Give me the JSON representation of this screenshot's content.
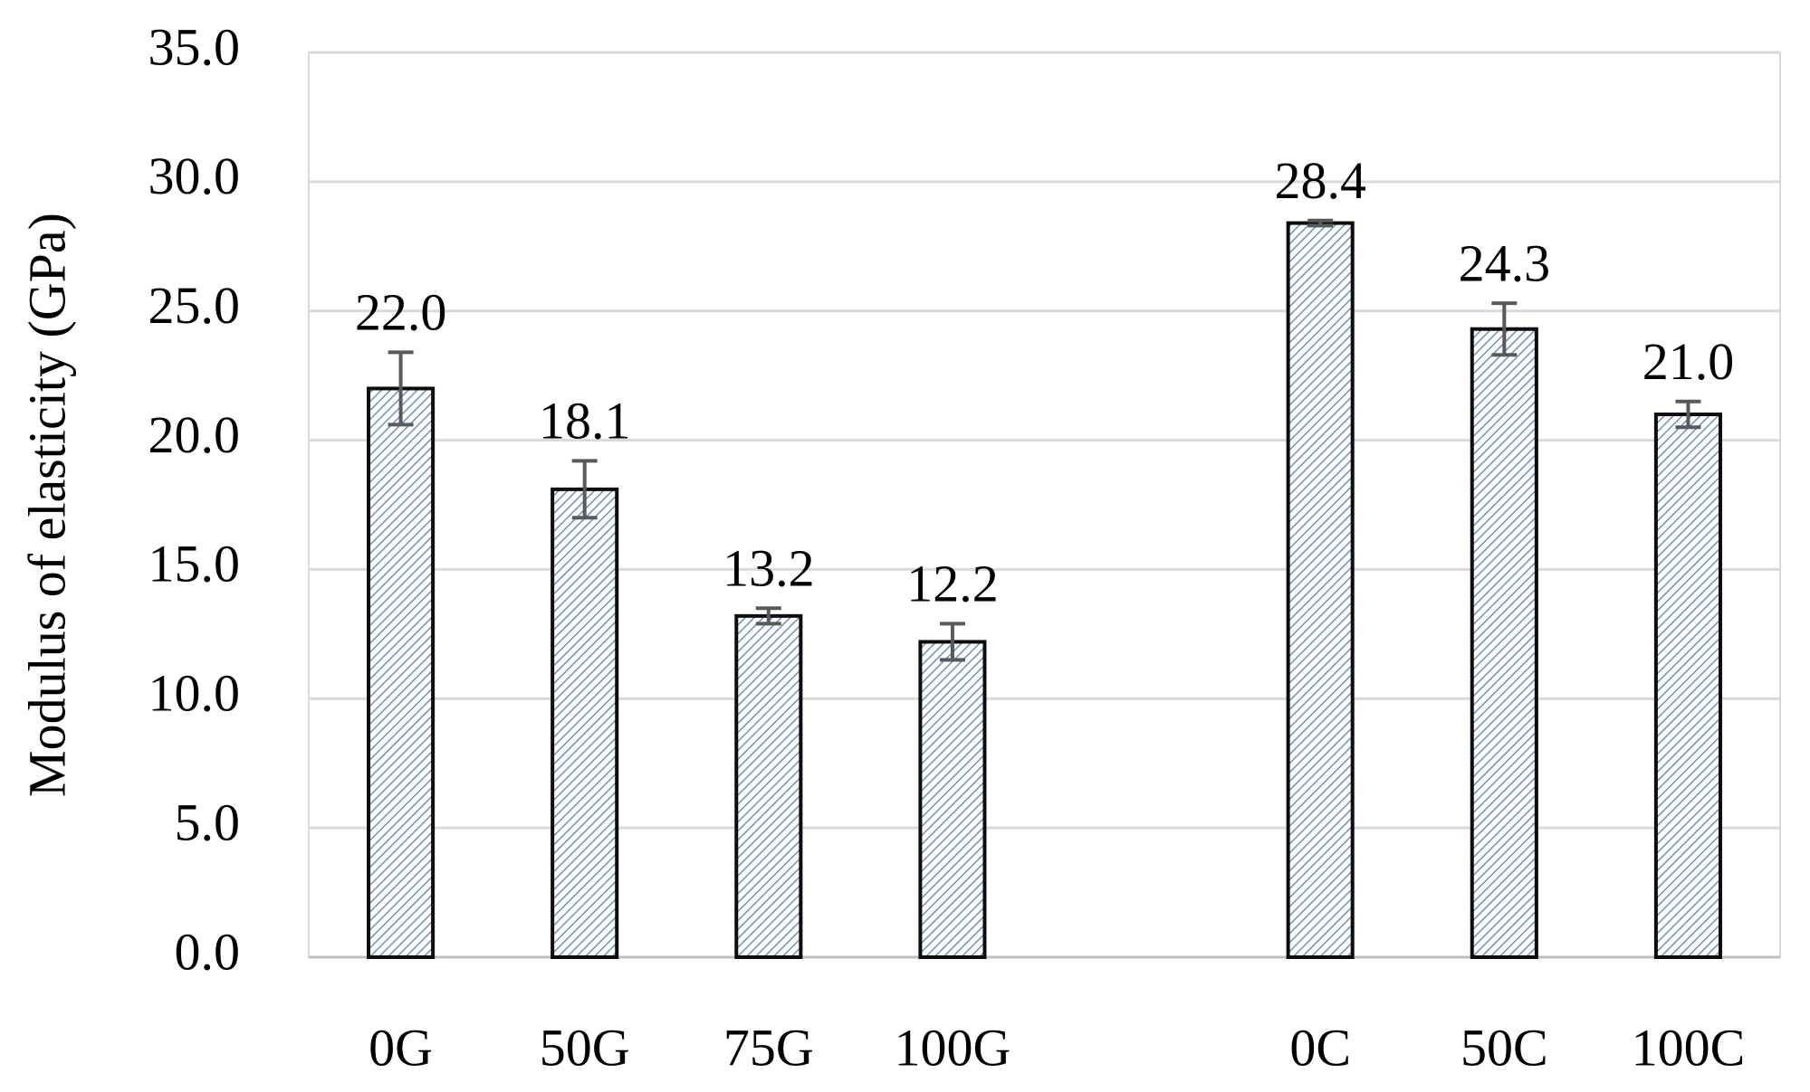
{
  "chart_data": {
    "type": "bar",
    "y_label": "Modulus of elasticity (GPa)",
    "categories": [
      "0G",
      "50G",
      "75G",
      "100G",
      null,
      "0C",
      "50C",
      "100C"
    ],
    "values": [
      22.0,
      18.1,
      13.2,
      12.2,
      null,
      28.4,
      24.3,
      21.0
    ],
    "value_labels": [
      "22.0",
      "18.1",
      "13.2",
      "12.2",
      null,
      "28.4",
      "24.3",
      "21.0"
    ],
    "errors": [
      1.4,
      1.1,
      0.3,
      0.7,
      null,
      0.1,
      1.0,
      0.5
    ],
    "color": "#6f8fc4",
    "error_color": "#595959",
    "ylim": [
      0,
      35
    ],
    "yticks": [
      {
        "value": 0,
        "label": "0.0"
      },
      {
        "value": 5,
        "label": "5.0"
      },
      {
        "value": 10,
        "label": "10.0"
      },
      {
        "value": 15,
        "label": "15.0"
      },
      {
        "value": 20,
        "label": "20.0"
      },
      {
        "value": 25,
        "label": "25.0"
      },
      {
        "value": 30,
        "label": "30.0"
      },
      {
        "value": 35,
        "label": "35.0"
      }
    ],
    "grid": true
  }
}
